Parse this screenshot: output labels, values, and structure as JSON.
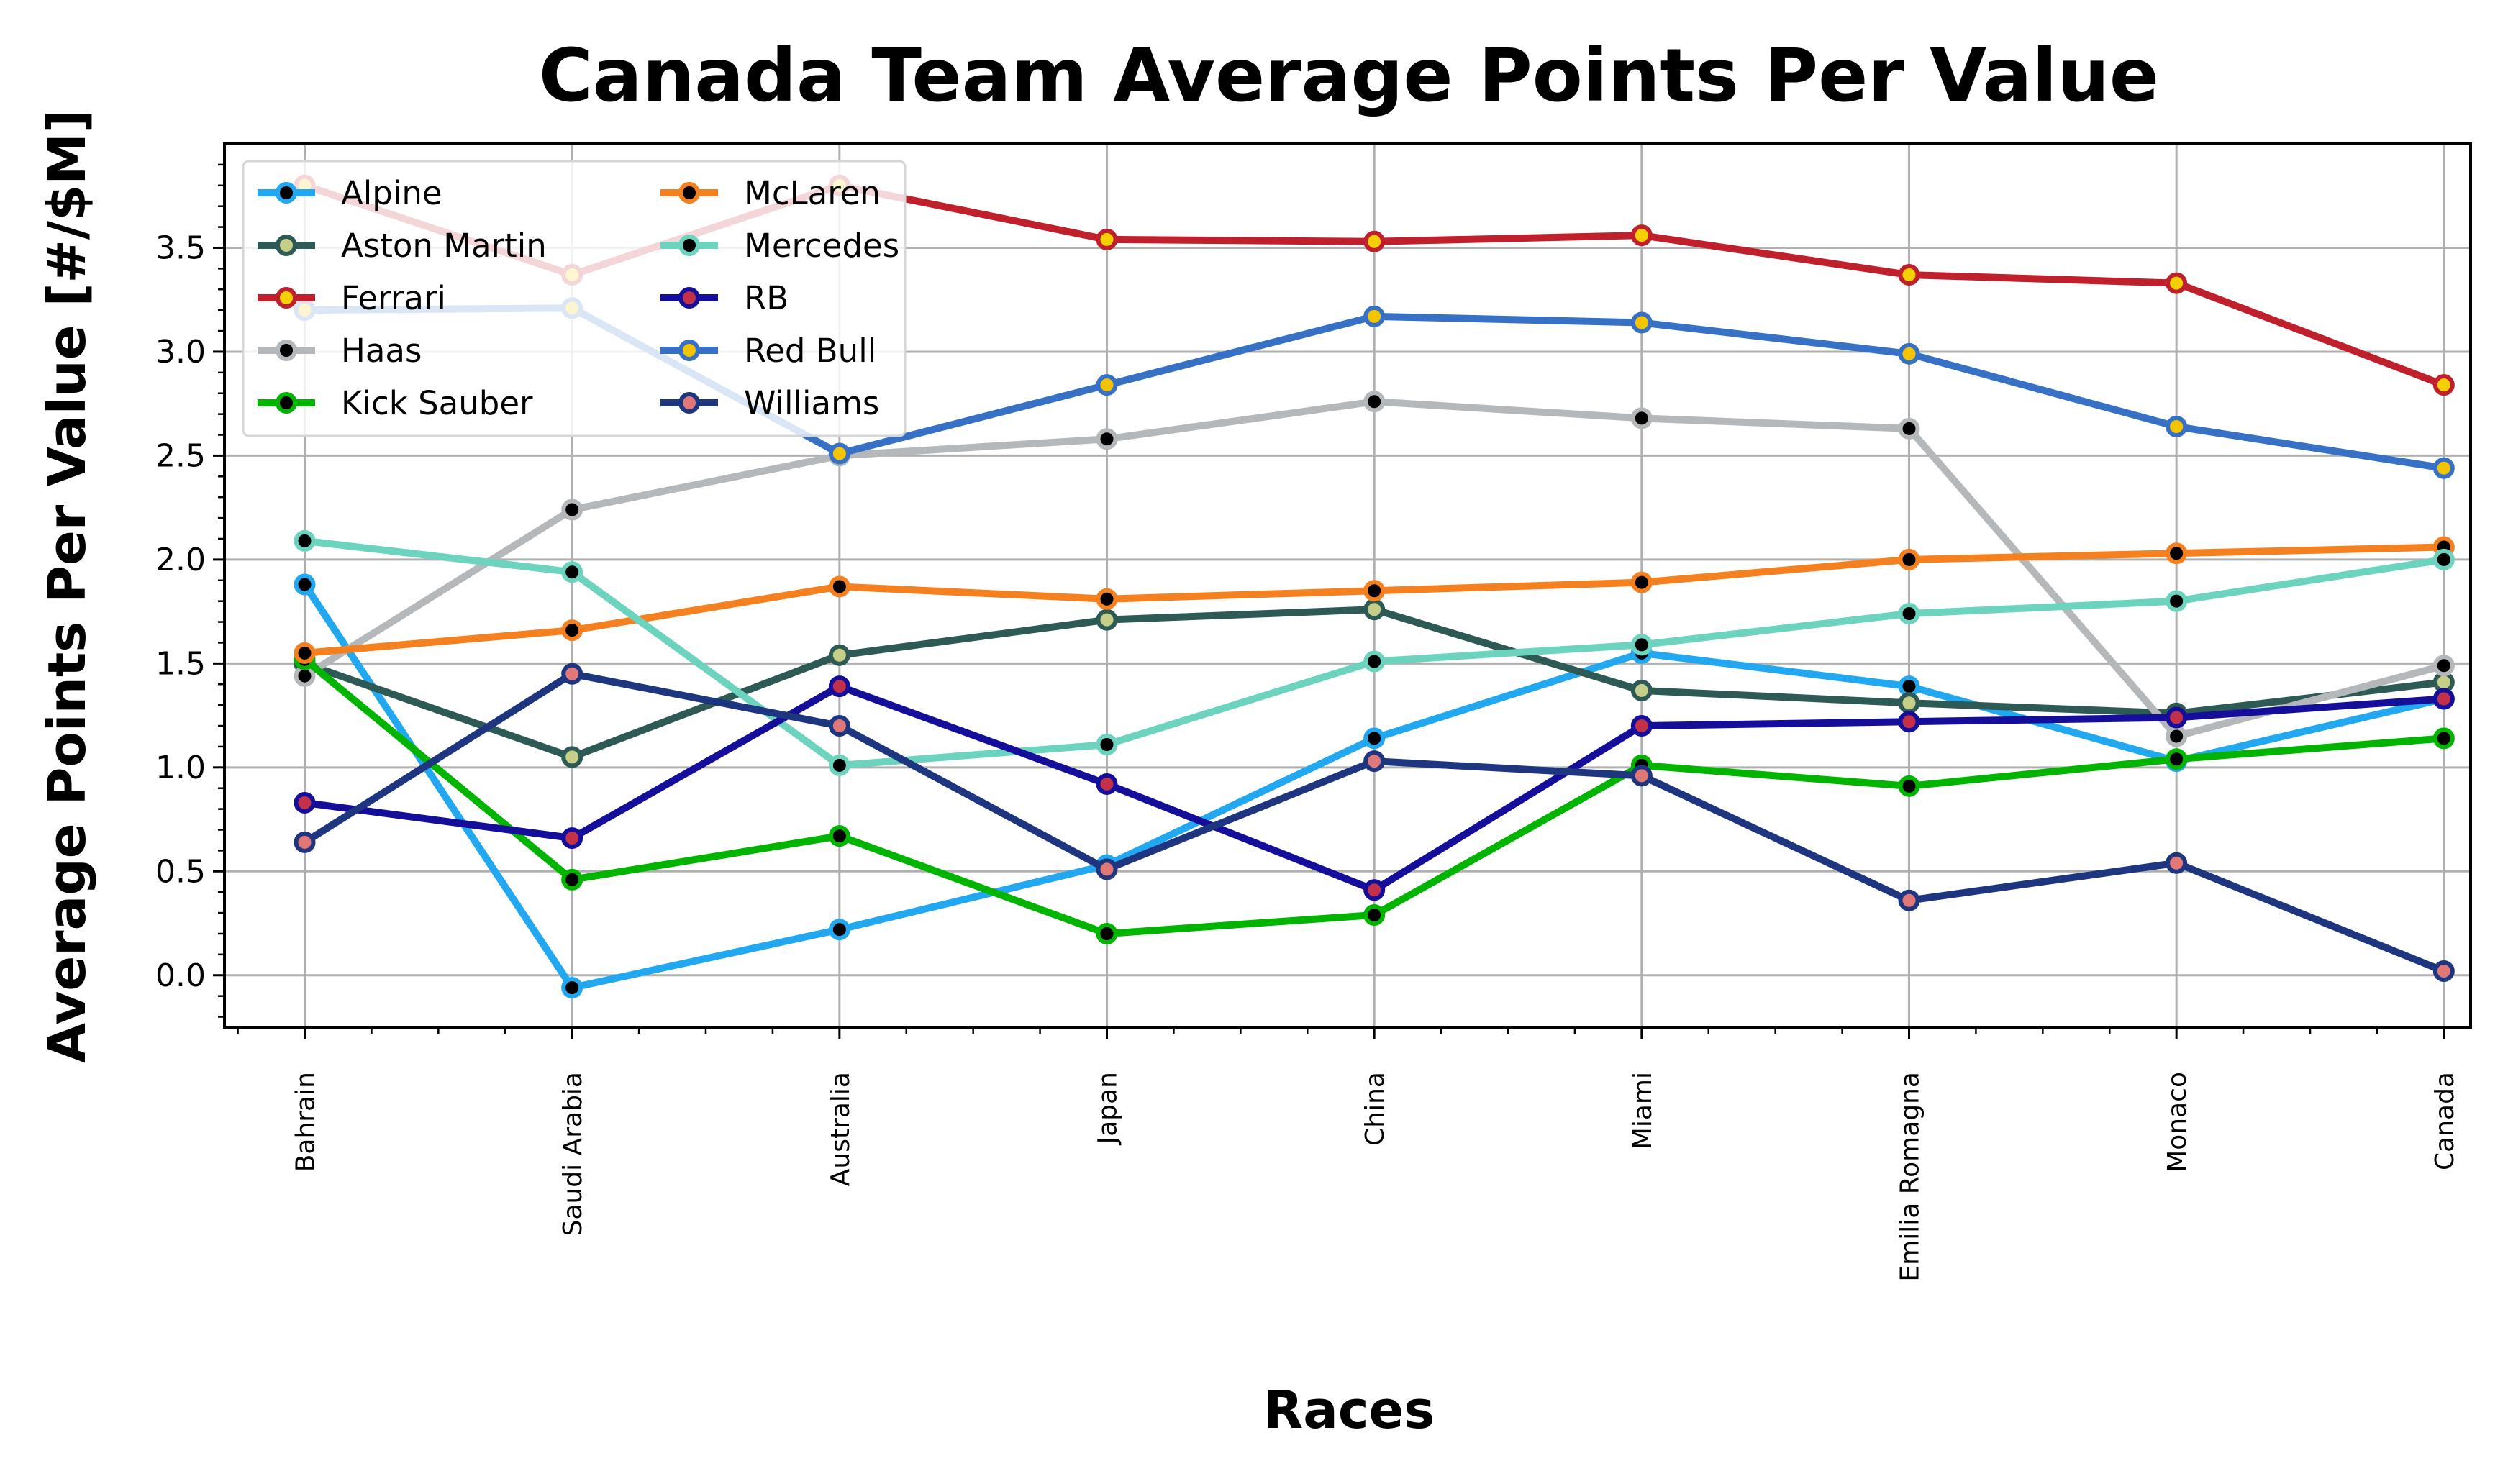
{
  "chart_data": {
    "type": "line",
    "title": "Canada Team Average Points Per Value",
    "xlabel": "Races",
    "ylabel": "Average Points Per Value [#/$M]",
    "categories": [
      "Bahrain",
      "Saudi Arabia",
      "Australia",
      "Japan",
      "China",
      "Miami",
      "Emilia Romagna",
      "Monaco",
      "Canada"
    ],
    "ylim": [
      -0.25,
      4.0
    ],
    "yticks": [
      0.0,
      0.5,
      1.0,
      1.5,
      2.0,
      2.5,
      3.0,
      3.5
    ],
    "ytick_labels": [
      "0.0",
      "0.5",
      "1.0",
      "1.5",
      "2.0",
      "2.5",
      "3.0",
      "3.5"
    ],
    "grid": true,
    "legend_position": "top-left",
    "series": [
      {
        "name": "Alpine",
        "color": "#22a8f0",
        "marker": "#000000",
        "values": [
          1.88,
          -0.06,
          0.22,
          0.53,
          1.14,
          1.55,
          1.39,
          1.03,
          1.33
        ]
      },
      {
        "name": "Aston Martin",
        "color": "#2d5a54",
        "marker": "#c5cf8a",
        "values": [
          1.5,
          1.05,
          1.54,
          1.71,
          1.76,
          1.37,
          1.31,
          1.26,
          1.41
        ]
      },
      {
        "name": "Ferrari",
        "color": "#c0202c",
        "marker": "#f5d000",
        "values": [
          3.8,
          3.37,
          3.8,
          3.54,
          3.53,
          3.56,
          3.37,
          3.33,
          2.84
        ]
      },
      {
        "name": "Haas",
        "color": "#b5b8bb",
        "marker": "#000000",
        "values": [
          1.44,
          2.24,
          2.5,
          2.58,
          2.76,
          2.68,
          2.63,
          1.15,
          1.49
        ]
      },
      {
        "name": "Kick Sauber",
        "color": "#00b400",
        "marker": "#000000",
        "values": [
          1.52,
          0.46,
          0.67,
          0.2,
          0.29,
          1.01,
          0.91,
          1.04,
          1.14
        ]
      },
      {
        "name": "McLaren",
        "color": "#f58020",
        "marker": "#000000",
        "values": [
          1.55,
          1.66,
          1.87,
          1.81,
          1.85,
          1.89,
          2.0,
          2.03,
          2.06
        ]
      },
      {
        "name": "Mercedes",
        "color": "#6cd3bf",
        "marker": "#000000",
        "values": [
          2.09,
          1.94,
          1.01,
          1.11,
          1.51,
          1.59,
          1.74,
          1.8,
          2.0
        ]
      },
      {
        "name": "RB",
        "color": "#140e9a",
        "marker": "#c2304a",
        "values": [
          0.83,
          0.66,
          1.39,
          0.92,
          0.41,
          1.2,
          1.22,
          1.24,
          1.33
        ]
      },
      {
        "name": "Red Bull",
        "color": "#3671c6",
        "marker": "#f5c400",
        "values": [
          3.2,
          3.21,
          2.51,
          2.84,
          3.17,
          3.14,
          2.99,
          2.64,
          2.44
        ]
      },
      {
        "name": "Williams",
        "color": "#1e3580",
        "marker": "#e07878",
        "values": [
          0.64,
          1.45,
          1.2,
          0.51,
          1.03,
          0.96,
          0.36,
          0.54,
          0.02
        ]
      }
    ]
  }
}
